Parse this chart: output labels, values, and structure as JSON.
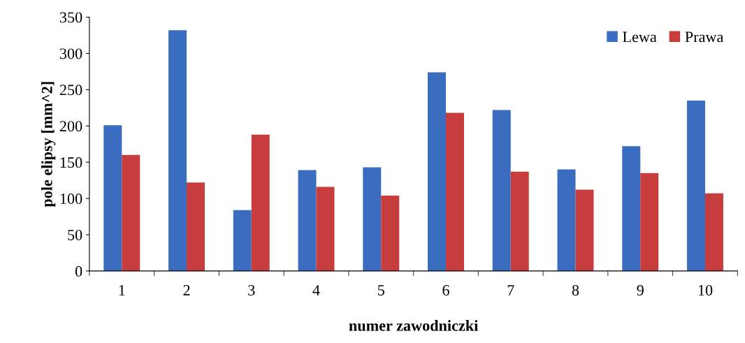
{
  "chart_data": {
    "type": "bar",
    "xlabel": "numer zawodniczki",
    "ylabel": "pole elipsy [mm^2]",
    "categories": [
      "1",
      "2",
      "3",
      "4",
      "5",
      "6",
      "7",
      "8",
      "9",
      "10"
    ],
    "series": [
      {
        "name": "Lewa",
        "color": "#3a6cbf",
        "values": [
          201,
          332,
          84,
          139,
          143,
          274,
          222,
          140,
          172,
          235
        ]
      },
      {
        "name": "Prawa",
        "color": "#c73c3c",
        "values": [
          160,
          122,
          188,
          116,
          104,
          218,
          137,
          112,
          135,
          107
        ]
      }
    ],
    "ylim": [
      0,
      350
    ],
    "yticks": [
      0,
      50,
      100,
      150,
      200,
      250,
      300,
      350
    ],
    "grid": false,
    "legend": "top right"
  }
}
